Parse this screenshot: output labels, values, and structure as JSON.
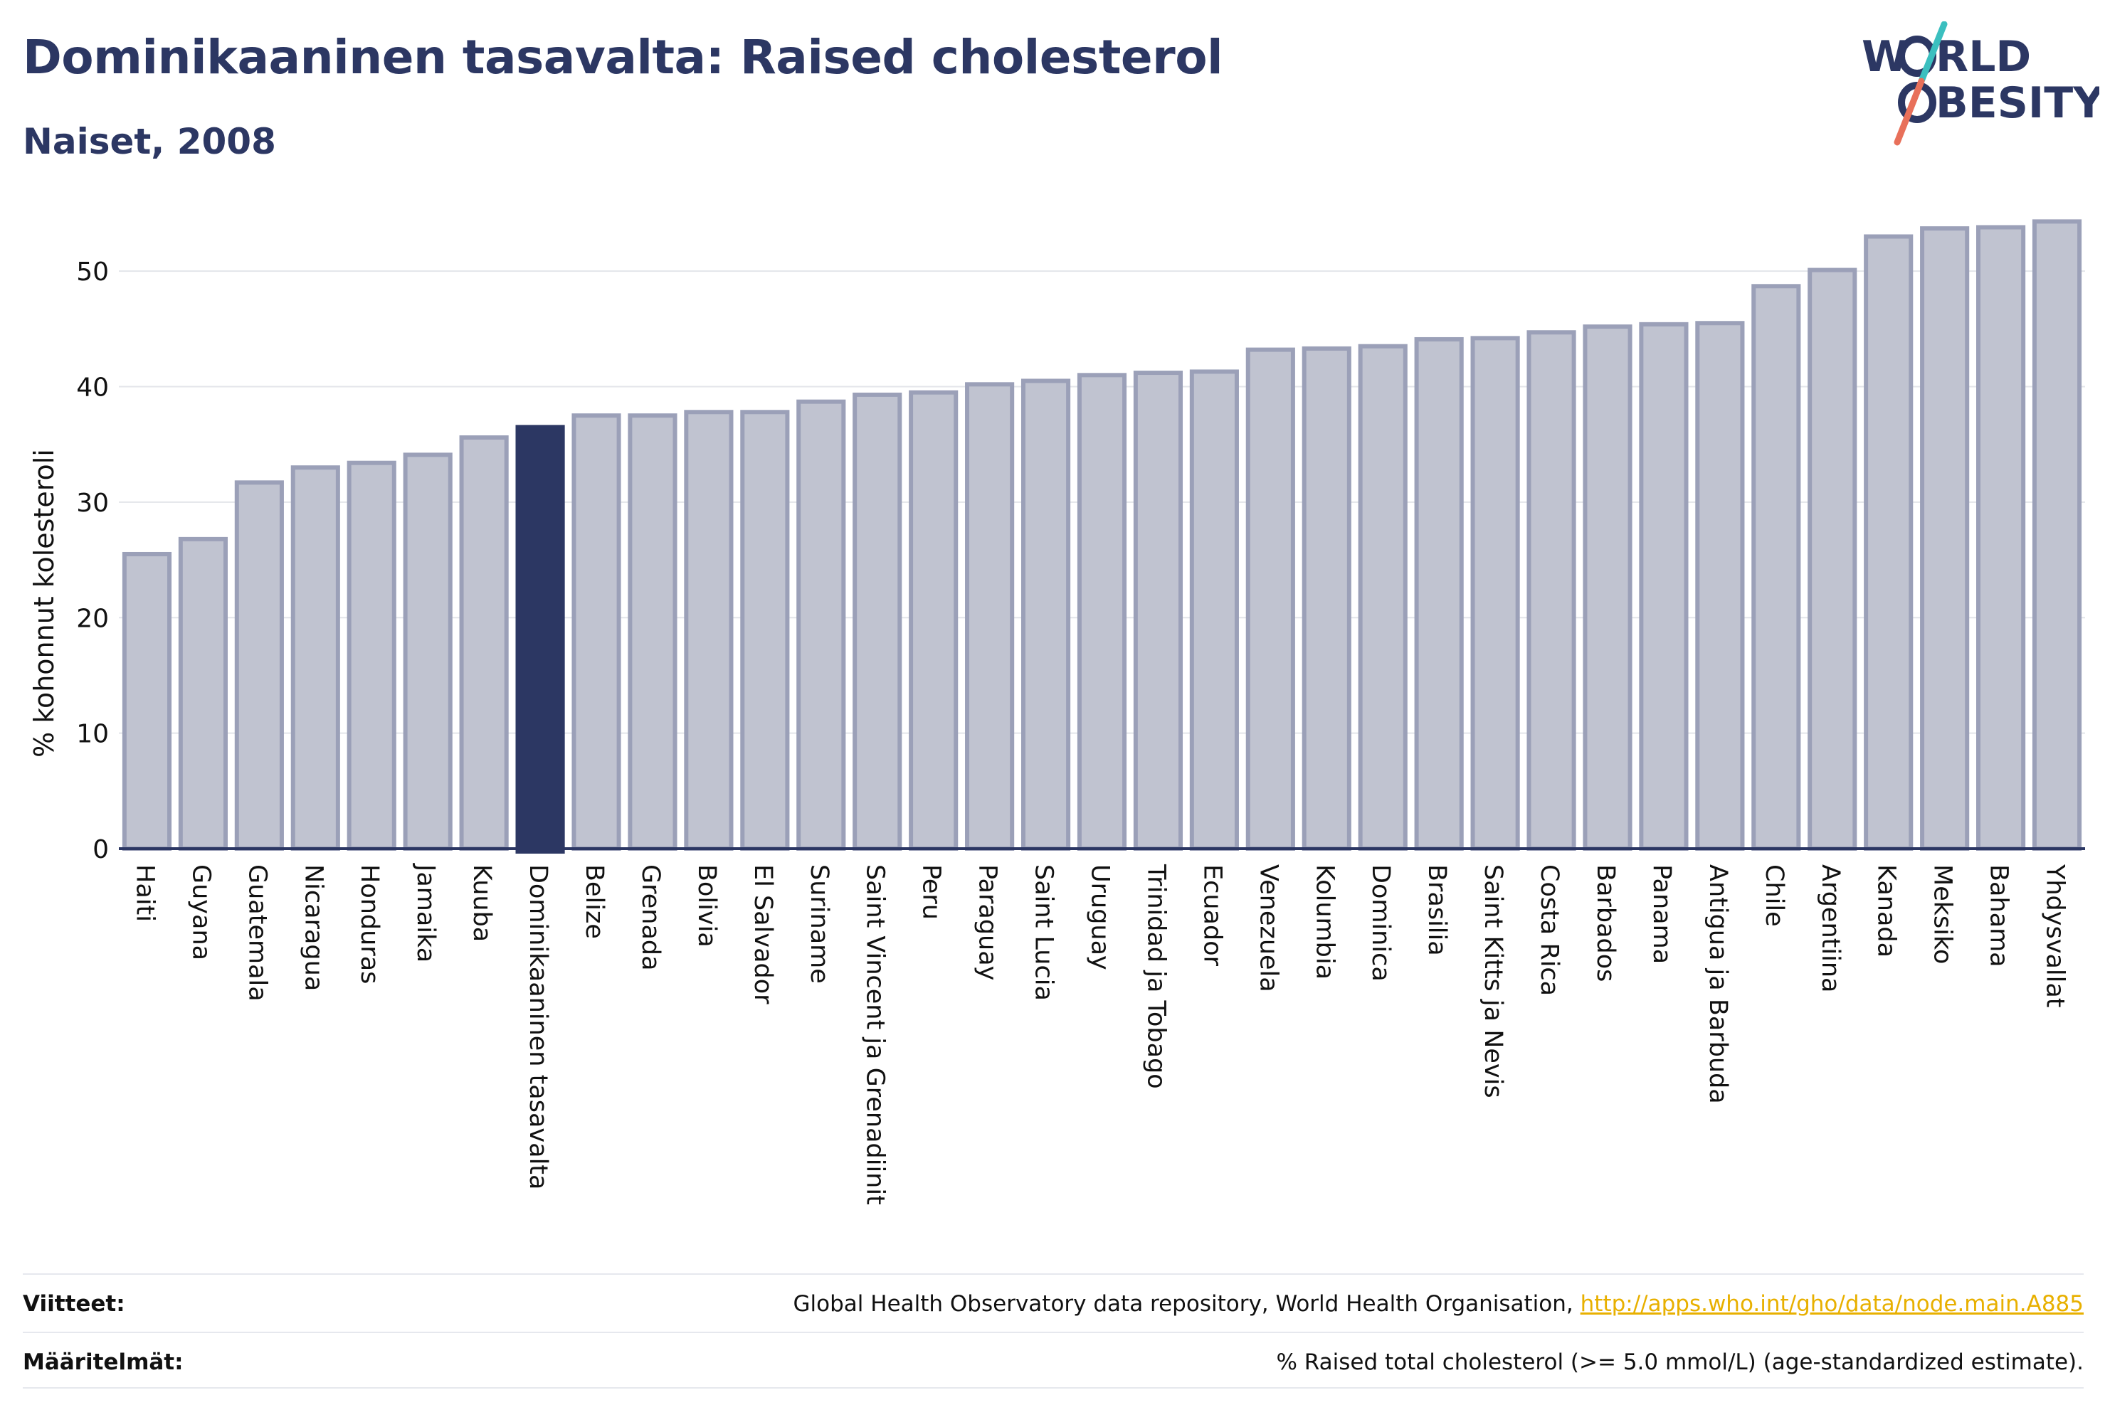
{
  "header": {
    "title": "Dominikaaninen tasavalta: Raised cholesterol",
    "subtitle": "Naiset, 2008"
  },
  "logo": {
    "line1": "W",
    "line1_rest": "RLD",
    "line2_rest": "BESITY",
    "text": "WORLD OBESITY",
    "accent_teal": "#3bbfbf",
    "accent_coral": "#e8705a",
    "color": "#2c3763"
  },
  "chart_data": {
    "type": "bar",
    "ylabel": "% kohonnut kolesteroli",
    "ylim": [
      0,
      55
    ],
    "yticks": [
      0,
      10,
      20,
      30,
      40,
      50
    ],
    "grid": true,
    "highlight": "Dominikaaninen tasavalta",
    "colors": {
      "bar": "#c0c3d0",
      "bar_edge": "#9ba0b8",
      "highlight": "#2c3763",
      "grid": "#e3e5ea",
      "axis": "#2c3763"
    },
    "categories": [
      "Haiti",
      "Guyana",
      "Guatemala",
      "Nicaragua",
      "Honduras",
      "Jamaika",
      "Kuuba",
      "Dominikaaninen tasavalta",
      "Belize",
      "Grenada",
      "Bolivia",
      "El Salvador",
      "Suriname",
      "Saint Vincent ja Grenadiinit",
      "Peru",
      "Paraguay",
      "Saint Lucia",
      "Uruguay",
      "Trinidad ja Tobago",
      "Ecuador",
      "Venezuela",
      "Kolumbia",
      "Dominica",
      "Brasilia",
      "Saint Kitts ja Nevis",
      "Costa Rica",
      "Barbados",
      "Panama",
      "Antigua ja Barbuda",
      "Chile",
      "Argentiina",
      "Kanada",
      "Meksiko",
      "Bahama",
      "Yhdysvallat"
    ],
    "values": [
      25.5,
      26.8,
      31.7,
      33.0,
      33.4,
      34.1,
      35.6,
      36.5,
      37.5,
      37.5,
      37.8,
      37.8,
      38.7,
      39.3,
      39.5,
      40.2,
      40.5,
      41.0,
      41.2,
      41.3,
      43.2,
      43.3,
      43.5,
      44.1,
      44.2,
      44.7,
      45.2,
      45.4,
      45.5,
      48.7,
      50.1,
      53.0,
      53.7,
      53.8,
      54.3
    ]
  },
  "footer": {
    "sources_label": "Viitteet:",
    "sources_text": "Global Health Observatory data repository, World Health Organisation, ",
    "sources_link": "http://apps.who.int/gho/data/node.main.A885",
    "definitions_label": "Määritelmät:",
    "definitions_text": "% Raised total cholesterol (>= 5.0 mmol/L) (age-standardized estimate)."
  }
}
